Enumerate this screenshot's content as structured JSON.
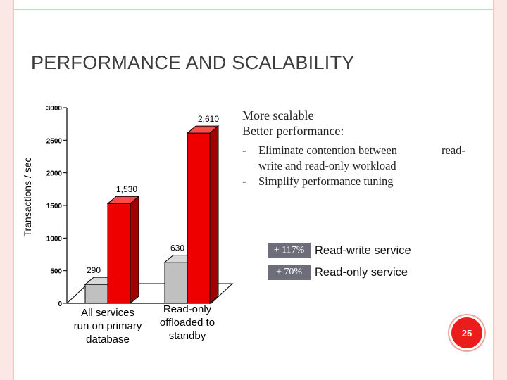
{
  "slide": {
    "title": "PERFORMANCE AND SCALABILITY",
    "page_number": "25"
  },
  "bullets": {
    "head_lines": [
      "More scalable",
      "Better performance:"
    ],
    "items": [
      {
        "dash": "-",
        "lines": [
          "Eliminate contention between",
          "write and read-only workload"
        ]
      },
      {
        "dash": "-",
        "lines": [
          "Simplify performance tuning"
        ]
      }
    ],
    "trailing": "read-"
  },
  "badges": [
    {
      "value": "+ 117%",
      "label": "Read-write service"
    },
    {
      "value": "+ 70%",
      "label": "Read-only service"
    }
  ],
  "chart_data": {
    "type": "bar",
    "ylabel": "Transactions / sec",
    "ylim": [
      0,
      3000
    ],
    "yticks": [
      0,
      500,
      1000,
      1500,
      2000,
      2500,
      3000
    ],
    "categories": [
      [
        "All services",
        "run on primary",
        "database"
      ],
      [
        "Read-only",
        "offloaded to",
        "standby"
      ]
    ],
    "series": [
      {
        "values": [
          290,
          630
        ],
        "labels": [
          "290",
          "630"
        ],
        "color": "#c0c0c0"
      },
      {
        "values": [
          1530,
          2610
        ],
        "labels": [
          "1,530",
          "2,610"
        ],
        "color": "#ee0000"
      }
    ],
    "grid": false,
    "style": "3d-bar"
  }
}
